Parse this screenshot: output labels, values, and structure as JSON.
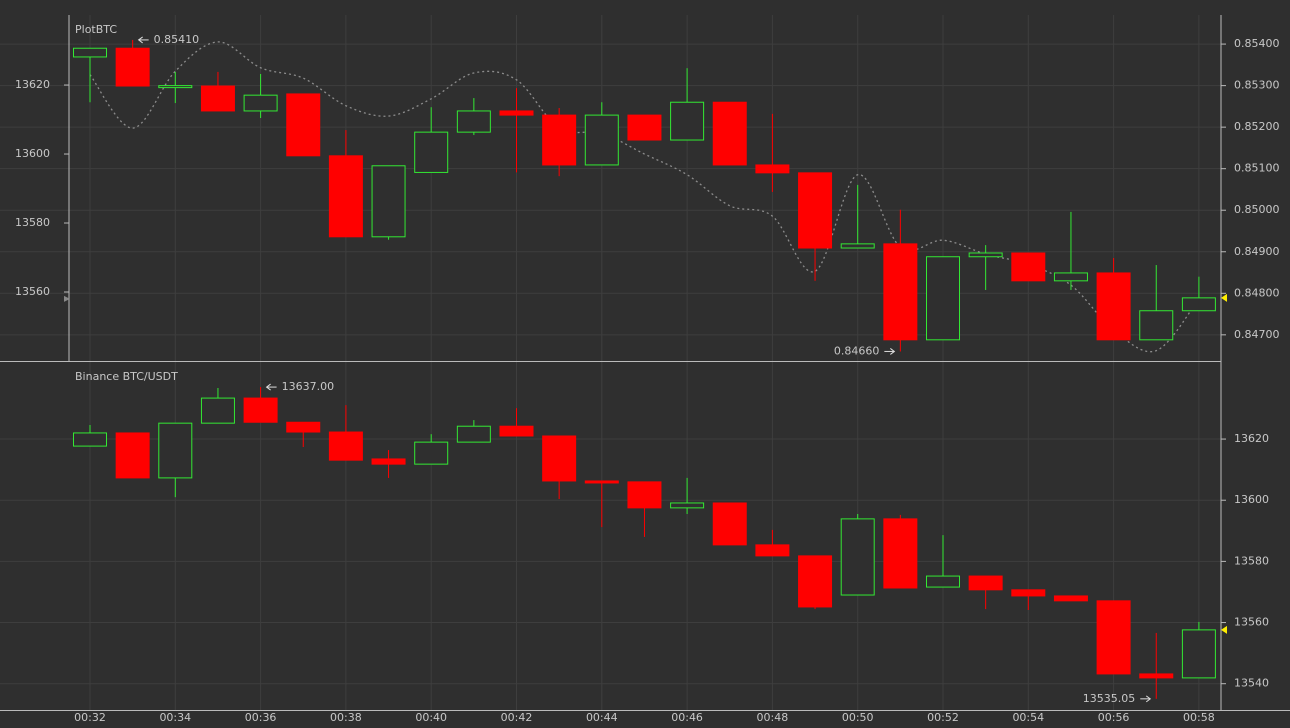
{
  "chart_data": [
    {
      "type": "candlestick",
      "title": "PlotBTC",
      "ylim": [
        13540,
        13640.3
      ],
      "yticks": [
        13560,
        13580,
        13600,
        13620
      ],
      "y2lim": [
        0.84637,
        0.8547
      ],
      "y2ticks": [
        {
          "value": 0.847,
          "label": "0.84700"
        },
        {
          "value": 0.848,
          "label": "0.84800"
        },
        {
          "value": 0.849,
          "label": "0.84900"
        },
        {
          "value": 0.85,
          "label": "0.85000"
        },
        {
          "value": 0.851,
          "label": "0.85100"
        },
        {
          "value": 0.852,
          "label": "0.85200"
        },
        {
          "value": 0.853,
          "label": "0.85300"
        },
        {
          "value": 0.854,
          "label": "0.85400"
        }
      ],
      "up_color": "#33e833",
      "down_color": "#ff0000",
      "candles": {
        "axis": "y2",
        "open": [
          0.85369,
          0.8539,
          0.853,
          0.85299,
          0.85239,
          0.8528,
          0.85131,
          0.84936,
          0.85091,
          0.85188,
          0.85239,
          0.85229,
          0.85109,
          0.85229,
          0.85169,
          0.8526,
          0.85109,
          0.8509,
          0.84909,
          0.84919,
          0.84688,
          0.84888,
          0.84897,
          0.8483,
          0.84849,
          0.84688,
          0.84758
        ],
        "high": [
          0.8539,
          0.8541,
          0.85333,
          0.85333,
          0.85328,
          0.8528,
          0.85193,
          0.85107,
          0.85248,
          0.8527,
          0.85294,
          0.85246,
          0.8526,
          0.85229,
          0.85342,
          0.8526,
          0.85232,
          0.8509,
          0.85061,
          0.85001,
          0.84888,
          0.84916,
          0.84897,
          0.84996,
          0.84885,
          0.84868,
          0.8484
        ],
        "low": [
          0.8526,
          0.85299,
          0.85258,
          0.85239,
          0.85222,
          0.85131,
          0.84936,
          0.84929,
          0.85091,
          0.85181,
          0.85091,
          0.85082,
          0.85109,
          0.85169,
          0.85169,
          0.85109,
          0.85044,
          0.8483,
          0.84909,
          0.8466,
          0.84688,
          0.84808,
          0.8483,
          0.84808,
          0.84688,
          0.84688,
          0.84758
        ],
        "close": [
          0.8539,
          0.85299,
          0.853,
          0.85239,
          0.85277,
          0.85131,
          0.84936,
          0.85107,
          0.85188,
          0.85239,
          0.85229,
          0.85109,
          0.85229,
          0.85169,
          0.8526,
          0.85109,
          0.8509,
          0.84909,
          0.84919,
          0.84688,
          0.84888,
          0.84897,
          0.8483,
          0.84849,
          0.84688,
          0.84758,
          0.84789
        ]
      },
      "line": {
        "axis": "y",
        "color": "#8c8c8c",
        "values": [
          13623,
          13607.5,
          13624,
          13632.5,
          13625,
          13622,
          13614,
          13611,
          13616,
          13623.5,
          13621.5,
          13607.5,
          13606,
          13600,
          13594,
          13585,
          13582,
          13566,
          13594,
          13573,
          13575,
          13571,
          13568,
          13562,
          13549,
          13543,
          13558
        ]
      },
      "high_label": "0.85410",
      "low_label": "0.84660"
    },
    {
      "type": "candlestick",
      "title": "Binance BTC/USDT",
      "categories": [
        "00:32",
        null,
        "00:34",
        null,
        "00:36",
        null,
        "00:38",
        null,
        "00:40",
        null,
        "00:42",
        null,
        "00:44",
        null,
        "00:46",
        null,
        "00:48",
        null,
        "00:50",
        null,
        "00:52",
        null,
        "00:54",
        null,
        "00:56",
        null,
        "00:58"
      ],
      "y2lim": [
        13531.4,
        13645.2
      ],
      "y2ticks": [
        13540,
        13560,
        13580,
        13600,
        13620
      ],
      "up_color": "#33e833",
      "down_color": "#ff0000",
      "candles": {
        "axis": "y2",
        "open": [
          13617.7,
          13622,
          13607.3,
          13625.2,
          13633.4,
          13625.5,
          13622.3,
          13613.5,
          13611.8,
          13619,
          13624.2,
          13621,
          13606.3,
          13606,
          13597.5,
          13599.1,
          13585.4,
          13581.8,
          13569,
          13593.9,
          13571.6,
          13575.2,
          13570.7,
          13568.7,
          13567.1,
          13543.2,
          13541.9
        ],
        "high": [
          13624.6,
          13622,
          13625.2,
          13636.7,
          13637,
          13625.5,
          13631.1,
          13616.4,
          13621.6,
          13626.2,
          13630.1,
          13621,
          13606.3,
          13606,
          13607.3,
          13599.1,
          13590.3,
          13581.8,
          13595.5,
          13595.2,
          13588.6,
          13575.2,
          13570.7,
          13568.7,
          13567.1,
          13556.6,
          13560.2
        ],
        "low": [
          13617.7,
          13607.3,
          13601,
          13625.2,
          13625.5,
          13617.4,
          13613.1,
          13607.3,
          13611.8,
          13619,
          13621,
          13600.4,
          13591.2,
          13588,
          13595.5,
          13585.4,
          13581.8,
          13564.4,
          13569,
          13571.3,
          13571.6,
          13564.4,
          13564.1,
          13567.1,
          13543.2,
          13535.05,
          13541.9
        ],
        "close": [
          13622,
          13607.3,
          13625.2,
          13633.4,
          13625.5,
          13622.3,
          13613.1,
          13611.8,
          13619,
          13624.2,
          13621,
          13606.3,
          13606,
          13597.5,
          13599.1,
          13585.4,
          13581.8,
          13565.1,
          13593.9,
          13571.3,
          13575.2,
          13570.7,
          13568.7,
          13567.1,
          13543.2,
          13541.9,
          13557.6
        ]
      },
      "high_label": "13637.00",
      "low_label": "13535.05"
    }
  ]
}
